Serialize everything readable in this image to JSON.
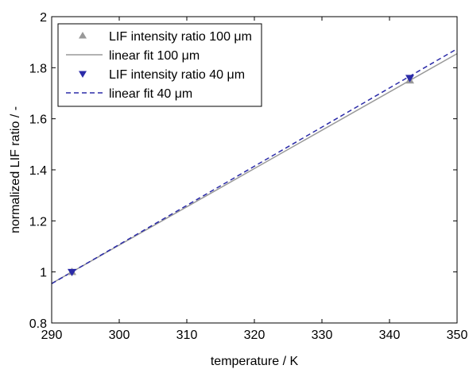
{
  "chart_data": {
    "type": "line",
    "xlabel": "temperature / K",
    "ylabel": "normalized LIF ratio / -",
    "xlim": [
      290,
      350
    ],
    "ylim": [
      0.8,
      2.0
    ],
    "xticks": [
      290,
      300,
      310,
      320,
      330,
      340,
      350
    ],
    "yticks": [
      0.8,
      1.0,
      1.2,
      1.4,
      1.6,
      1.8,
      2.0
    ],
    "x_tick_labels": [
      "290",
      "300",
      "310",
      "320",
      "330",
      "340",
      "350"
    ],
    "y_tick_labels": [
      "0.8",
      "1",
      "1.2",
      "1.4",
      "1.6",
      "1.8",
      "2"
    ],
    "grid": false,
    "legend_position": "top-left",
    "legend_entries": [
      "LIF intensity ratio 100 μm",
      "linear fit 100 μm",
      "LIF intensity ratio 40 μm",
      "linear fit 40 μm"
    ],
    "series": [
      {
        "name": "LIF intensity ratio 100 μm",
        "kind": "scatter",
        "marker": "triangle-up",
        "color": "#999999",
        "points": [
          {
            "x": 293,
            "y": 1.0
          },
          {
            "x": 343,
            "y": 1.75
          }
        ]
      },
      {
        "name": "linear fit 100 μm",
        "kind": "line",
        "style": "solid",
        "color": "#999999",
        "points": [
          {
            "x": 290,
            "y": 0.955
          },
          {
            "x": 350,
            "y": 1.855
          }
        ]
      },
      {
        "name": "LIF intensity ratio 40 μm",
        "kind": "scatter",
        "marker": "triangle-down",
        "color": "#2b2ba8",
        "points": [
          {
            "x": 293,
            "y": 1.0
          },
          {
            "x": 343,
            "y": 1.76
          }
        ]
      },
      {
        "name": "linear fit 40 μm",
        "kind": "line",
        "style": "dashed",
        "color": "#2b2ba8",
        "points": [
          {
            "x": 290,
            "y": 0.954
          },
          {
            "x": 350,
            "y": 1.874
          }
        ]
      }
    ]
  }
}
